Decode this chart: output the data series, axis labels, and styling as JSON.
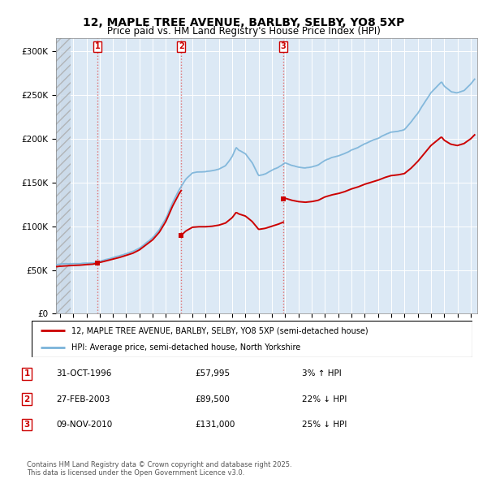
{
  "title": "12, MAPLE TREE AVENUE, BARLBY, SELBY, YO8 5XP",
  "subtitle": "Price paid vs. HM Land Registry's House Price Index (HPI)",
  "ylabel_ticks": [
    "£0",
    "£50K",
    "£100K",
    "£150K",
    "£200K",
    "£250K",
    "£300K"
  ],
  "ytick_vals": [
    0,
    50000,
    100000,
    150000,
    200000,
    250000,
    300000
  ],
  "ylim": [
    0,
    315000
  ],
  "xlim_start": 1993.7,
  "xlim_end": 2025.5,
  "hpi_color": "#7ab3d9",
  "price_color": "#cc0000",
  "sale_marker_color": "#cc0000",
  "vline_color": "#e06060",
  "sales": [
    {
      "date_num": 1996.83,
      "price": 57995,
      "label": "1"
    },
    {
      "date_num": 2003.15,
      "price": 89500,
      "label": "2"
    },
    {
      "date_num": 2010.86,
      "price": 131000,
      "label": "3"
    }
  ],
  "legend_entries": [
    "12, MAPLE TREE AVENUE, BARLBY, SELBY, YO8 5XP (semi-detached house)",
    "HPI: Average price, semi-detached house, North Yorkshire"
  ],
  "table_rows": [
    {
      "num": "1",
      "date": "31-OCT-1996",
      "price": "£57,995",
      "hpi": "3% ↑ HPI"
    },
    {
      "num": "2",
      "date": "27-FEB-2003",
      "price": "£89,500",
      "hpi": "22% ↓ HPI"
    },
    {
      "num": "3",
      "date": "09-NOV-2010",
      "price": "£131,000",
      "hpi": "25% ↓ HPI"
    }
  ],
  "footer": "Contains HM Land Registry data © Crown copyright and database right 2025.\nThis data is licensed under the Open Government Licence v3.0.",
  "background_color": "#ffffff",
  "plot_bg_color": "#dce9f5",
  "grid_color": "#ffffff",
  "hatch_end": 1994.83
}
